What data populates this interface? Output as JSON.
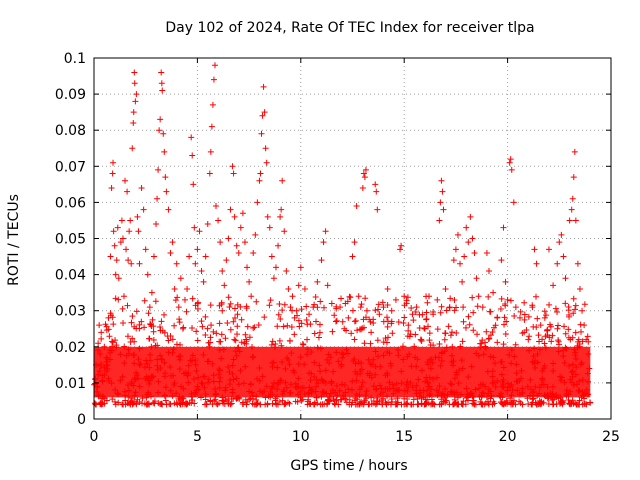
{
  "chart_data": {
    "type": "scatter",
    "title": "Day 102 of 2024, Rate Of TEC Index for receiver tlpa",
    "xlabel": "GPS time / hours",
    "ylabel": "ROTI / TECUs",
    "xlim": [
      0,
      25
    ],
    "ylim": [
      0,
      0.1
    ],
    "xticks": [
      0,
      5,
      10,
      15,
      20,
      25
    ],
    "yticks": [
      0,
      0.01,
      0.02,
      0.03,
      0.04,
      0.05,
      0.06,
      0.07,
      0.08,
      0.09,
      0.1
    ],
    "xtick_labels": [
      "0",
      "5",
      "10",
      "15",
      "20",
      "25"
    ],
    "ytick_labels": [
      "0",
      "0.01",
      "0.02",
      "0.03",
      "0.04",
      "0.05",
      "0.06",
      "0.07",
      "0.08",
      "0.09",
      "0.1"
    ],
    "grid": true,
    "marker": "+",
    "color": "#ff0000",
    "data_extent_hours": [
      0,
      24
    ],
    "series": [
      {
        "name": "ROTI",
        "points": [
          [
            0.05,
            0.011
          ],
          [
            0.1,
            0.015
          ],
          [
            0.15,
            0.009
          ],
          [
            0.2,
            0.021
          ],
          [
            0.25,
            0.026
          ],
          [
            0.3,
            0.018
          ],
          [
            0.35,
            0.024
          ],
          [
            0.4,
            0.012
          ],
          [
            0.5,
            0.02
          ],
          [
            0.6,
            0.017
          ],
          [
            0.7,
            0.028
          ],
          [
            0.8,
            0.045
          ],
          [
            0.85,
            0.064
          ],
          [
            0.9,
            0.068
          ],
          [
            0.92,
            0.071
          ],
          [
            0.95,
            0.052
          ],
          [
            1.0,
            0.048
          ],
          [
            1.05,
            0.04
          ],
          [
            1.1,
            0.044
          ],
          [
            1.15,
            0.053
          ],
          [
            1.2,
            0.039
          ],
          [
            1.3,
            0.049
          ],
          [
            1.35,
            0.055
          ],
          [
            1.4,
            0.05
          ],
          [
            1.45,
            0.034
          ],
          [
            1.5,
            0.066
          ],
          [
            1.55,
            0.047
          ],
          [
            1.6,
            0.063
          ],
          [
            1.65,
            0.044
          ],
          [
            1.7,
            0.052
          ],
          [
            1.75,
            0.055
          ],
          [
            1.8,
            0.043
          ],
          [
            1.85,
            0.075
          ],
          [
            1.9,
            0.082
          ],
          [
            1.92,
            0.085
          ],
          [
            1.95,
            0.096
          ],
          [
            1.97,
            0.093
          ],
          [
            2.0,
            0.088
          ],
          [
            2.05,
            0.09
          ],
          [
            2.1,
            0.056
          ],
          [
            2.15,
            0.052
          ],
          [
            2.2,
            0.043
          ],
          [
            2.3,
            0.064
          ],
          [
            2.4,
            0.058
          ],
          [
            2.5,
            0.047
          ],
          [
            2.6,
            0.04
          ],
          [
            2.7,
            0.031
          ],
          [
            2.8,
            0.035
          ],
          [
            2.9,
            0.045
          ],
          [
            3.0,
            0.054
          ],
          [
            3.05,
            0.061
          ],
          [
            3.1,
            0.069
          ],
          [
            3.15,
            0.08
          ],
          [
            3.2,
            0.083
          ],
          [
            3.25,
            0.096
          ],
          [
            3.28,
            0.093
          ],
          [
            3.3,
            0.091
          ],
          [
            3.35,
            0.079
          ],
          [
            3.4,
            0.074
          ],
          [
            3.45,
            0.067
          ],
          [
            3.5,
            0.063
          ],
          [
            3.6,
            0.058
          ],
          [
            3.7,
            0.046
          ],
          [
            3.8,
            0.049
          ],
          [
            3.9,
            0.036
          ],
          [
            4.0,
            0.043
          ],
          [
            4.1,
            0.031
          ],
          [
            4.2,
            0.039
          ],
          [
            4.3,
            0.025
          ],
          [
            4.4,
            0.033
          ],
          [
            4.5,
            0.036
          ],
          [
            4.6,
            0.045
          ],
          [
            4.7,
            0.078
          ],
          [
            4.75,
            0.073
          ],
          [
            4.8,
            0.065
          ],
          [
            4.85,
            0.053
          ],
          [
            4.9,
            0.043
          ],
          [
            5.0,
            0.047
          ],
          [
            5.1,
            0.052
          ],
          [
            5.2,
            0.041
          ],
          [
            5.3,
            0.038
          ],
          [
            5.4,
            0.045
          ],
          [
            5.5,
            0.054
          ],
          [
            5.6,
            0.068
          ],
          [
            5.65,
            0.074
          ],
          [
            5.7,
            0.081
          ],
          [
            5.75,
            0.087
          ],
          [
            5.8,
            0.094
          ],
          [
            5.85,
            0.098
          ],
          [
            5.9,
            0.059
          ],
          [
            6.0,
            0.055
          ],
          [
            6.1,
            0.049
          ],
          [
            6.2,
            0.041
          ],
          [
            6.3,
            0.037
          ],
          [
            6.4,
            0.044
          ],
          [
            6.5,
            0.05
          ],
          [
            6.6,
            0.058
          ],
          [
            6.7,
            0.07
          ],
          [
            6.75,
            0.068
          ],
          [
            6.8,
            0.056
          ],
          [
            6.9,
            0.048
          ],
          [
            7.0,
            0.046
          ],
          [
            7.1,
            0.053
          ],
          [
            7.2,
            0.057
          ],
          [
            7.3,
            0.049
          ],
          [
            7.4,
            0.042
          ],
          [
            7.5,
            0.038
          ],
          [
            7.6,
            0.034
          ],
          [
            7.7,
            0.046
          ],
          [
            7.8,
            0.051
          ],
          [
            7.9,
            0.06
          ],
          [
            8.0,
            0.066
          ],
          [
            8.05,
            0.068
          ],
          [
            8.1,
            0.079
          ],
          [
            8.15,
            0.084
          ],
          [
            8.2,
            0.092
          ],
          [
            8.25,
            0.085
          ],
          [
            8.3,
            0.075
          ],
          [
            8.35,
            0.071
          ],
          [
            8.4,
            0.056
          ],
          [
            8.5,
            0.053
          ],
          [
            8.6,
            0.045
          ],
          [
            8.7,
            0.039
          ],
          [
            8.8,
            0.042
          ],
          [
            8.9,
            0.048
          ],
          [
            9.0,
            0.056
          ],
          [
            9.05,
            0.058
          ],
          [
            9.1,
            0.066
          ],
          [
            9.2,
            0.052
          ],
          [
            9.3,
            0.041
          ],
          [
            9.4,
            0.036
          ],
          [
            9.5,
            0.031
          ],
          [
            9.6,
            0.034
          ],
          [
            9.7,
            0.028
          ],
          [
            9.8,
            0.03
          ],
          [
            9.9,
            0.037
          ],
          [
            10.0,
            0.042
          ],
          [
            10.2,
            0.036
          ],
          [
            10.4,
            0.029
          ],
          [
            10.6,
            0.031
          ],
          [
            10.8,
            0.038
          ],
          [
            11.0,
            0.044
          ],
          [
            11.1,
            0.049
          ],
          [
            11.2,
            0.052
          ],
          [
            11.3,
            0.037
          ],
          [
            11.5,
            0.032
          ],
          [
            11.7,
            0.027
          ],
          [
            11.9,
            0.031
          ],
          [
            12.1,
            0.025
          ],
          [
            12.3,
            0.028
          ],
          [
            12.5,
            0.045
          ],
          [
            12.6,
            0.049
          ],
          [
            12.7,
            0.059
          ],
          [
            12.8,
            0.034
          ],
          [
            12.9,
            0.031
          ],
          [
            13.0,
            0.064
          ],
          [
            13.05,
            0.068
          ],
          [
            13.1,
            0.067
          ],
          [
            13.15,
            0.069
          ],
          [
            13.2,
            0.03
          ],
          [
            13.4,
            0.024
          ],
          [
            13.6,
            0.065
          ],
          [
            13.65,
            0.063
          ],
          [
            13.7,
            0.058
          ],
          [
            13.8,
            0.029
          ],
          [
            14.0,
            0.031
          ],
          [
            14.2,
            0.036
          ],
          [
            14.4,
            0.027
          ],
          [
            14.6,
            0.033
          ],
          [
            14.8,
            0.047
          ],
          [
            14.85,
            0.048
          ],
          [
            15.0,
            0.034
          ],
          [
            15.2,
            0.026
          ],
          [
            15.4,
            0.029
          ],
          [
            15.6,
            0.031
          ],
          [
            15.8,
            0.022
          ],
          [
            16.0,
            0.025
          ],
          [
            16.2,
            0.034
          ],
          [
            16.4,
            0.029
          ],
          [
            16.6,
            0.033
          ],
          [
            16.7,
            0.055
          ],
          [
            16.75,
            0.06
          ],
          [
            16.8,
            0.066
          ],
          [
            16.85,
            0.063
          ],
          [
            16.9,
            0.058
          ],
          [
            17.0,
            0.036
          ],
          [
            17.2,
            0.031
          ],
          [
            17.4,
            0.044
          ],
          [
            17.5,
            0.047
          ],
          [
            17.6,
            0.051
          ],
          [
            17.7,
            0.043
          ],
          [
            17.8,
            0.038
          ],
          [
            17.9,
            0.045
          ],
          [
            18.0,
            0.053
          ],
          [
            18.1,
            0.049
          ],
          [
            18.2,
            0.056
          ],
          [
            18.3,
            0.05
          ],
          [
            18.4,
            0.046
          ],
          [
            18.5,
            0.039
          ],
          [
            18.6,
            0.034
          ],
          [
            18.8,
            0.031
          ],
          [
            19.0,
            0.046
          ],
          [
            19.1,
            0.041
          ],
          [
            19.3,
            0.035
          ],
          [
            19.5,
            0.028
          ],
          [
            19.7,
            0.044
          ],
          [
            19.8,
            0.053
          ],
          [
            19.9,
            0.038
          ],
          [
            20.0,
            0.033
          ],
          [
            20.1,
            0.071
          ],
          [
            20.15,
            0.072
          ],
          [
            20.2,
            0.069
          ],
          [
            20.3,
            0.06
          ],
          [
            20.4,
            0.031
          ],
          [
            20.6,
            0.028
          ],
          [
            20.8,
            0.024
          ],
          [
            21.0,
            0.022
          ],
          [
            21.2,
            0.031
          ],
          [
            21.3,
            0.047
          ],
          [
            21.4,
            0.043
          ],
          [
            21.6,
            0.026
          ],
          [
            21.8,
            0.028
          ],
          [
            22.0,
            0.047
          ],
          [
            22.2,
            0.037
          ],
          [
            22.4,
            0.043
          ],
          [
            22.5,
            0.049
          ],
          [
            22.6,
            0.051
          ],
          [
            22.7,
            0.045
          ],
          [
            22.8,
            0.039
          ],
          [
            23.0,
            0.055
          ],
          [
            23.1,
            0.058
          ],
          [
            23.15,
            0.061
          ],
          [
            23.2,
            0.067
          ],
          [
            23.25,
            0.074
          ],
          [
            23.3,
            0.055
          ],
          [
            23.4,
            0.043
          ],
          [
            23.5,
            0.036
          ],
          [
            23.6,
            0.03
          ],
          [
            23.7,
            0.026
          ],
          [
            23.8,
            0.022
          ],
          [
            23.9,
            0.018
          ],
          [
            23.95,
            0.014
          ]
        ]
      }
    ]
  }
}
